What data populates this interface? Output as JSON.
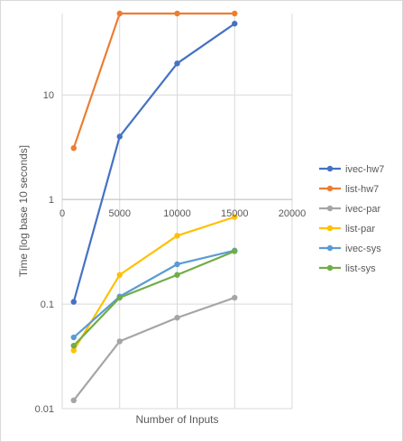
{
  "chart_data": {
    "type": "scatter",
    "xlabel": "Number  of Inputs",
    "ylabel": "Time [log base 10 seconds]",
    "x_ticks": [
      0,
      5000,
      10000,
      15000,
      20000
    ],
    "x_tick_labels": [
      "0",
      "5000",
      "10000",
      "15000",
      "20000"
    ],
    "xlim": [
      0,
      20000
    ],
    "y_scale": "log10",
    "ylim": [
      0.01,
      60
    ],
    "y_ticks": [
      0.01,
      0.1,
      1,
      10
    ],
    "y_tick_labels": [
      "0.01",
      "0.1",
      "1",
      "10"
    ],
    "grid": true,
    "legend_position": "right",
    "series": [
      {
        "name": "ivec-hw7",
        "color": "#4472c4",
        "x": [
          1000,
          5000,
          10000,
          15000
        ],
        "values": [
          0.105,
          4.0,
          20.0,
          48.0
        ]
      },
      {
        "name": "list-hw7",
        "color": "#ed7d31",
        "x": [
          1000,
          5000,
          10000,
          15000
        ],
        "values": [
          3.1,
          60,
          60,
          60
        ]
      },
      {
        "name": "ivec-par",
        "color": "#a5a5a5",
        "x": [
          1000,
          5000,
          10000,
          15000
        ],
        "values": [
          0.012,
          0.044,
          0.074,
          0.115
        ]
      },
      {
        "name": "list-par",
        "color": "#ffc000",
        "x": [
          1000,
          5000,
          10000,
          15000
        ],
        "values": [
          0.036,
          0.19,
          0.45,
          0.68
        ]
      },
      {
        "name": "ivec-sys",
        "color": "#5b9bd5",
        "x": [
          1000,
          5000,
          10000,
          15000
        ],
        "values": [
          0.048,
          0.118,
          0.24,
          0.325
        ]
      },
      {
        "name": "list-sys",
        "color": "#70ad47",
        "x": [
          1000,
          5000,
          10000,
          15000
        ],
        "values": [
          0.04,
          0.115,
          0.19,
          0.32
        ]
      }
    ]
  }
}
